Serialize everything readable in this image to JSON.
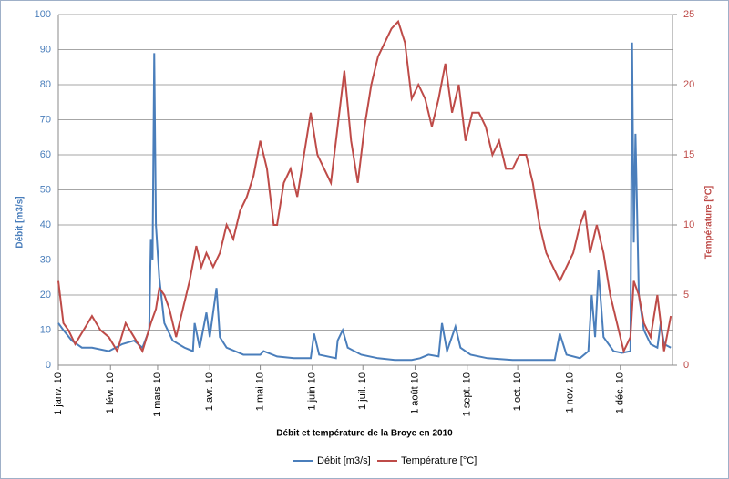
{
  "chart_data": {
    "type": "line",
    "title": "Débit et température de la Broye en 2010",
    "y_label": "Débit [m3/s]",
    "y2_label": "Température [°C]",
    "xlim": [
      0,
      365
    ],
    "xticks": [
      {
        "value": 0,
        "label": "1 janv. 10"
      },
      {
        "value": 31,
        "label": "1 févr. 10"
      },
      {
        "value": 59,
        "label": "1 mars 10"
      },
      {
        "value": 90,
        "label": "1 avr. 10"
      },
      {
        "value": 120,
        "label": "1 mai 10"
      },
      {
        "value": 151,
        "label": "1 juin 10"
      },
      {
        "value": 181,
        "label": "1 juil. 10"
      },
      {
        "value": 212,
        "label": "1 août 10"
      },
      {
        "value": 243,
        "label": "1 sept. 10"
      },
      {
        "value": 273,
        "label": "1 oct. 10"
      },
      {
        "value": 304,
        "label": "1 nov. 10"
      },
      {
        "value": 334,
        "label": "1 déc. 10"
      }
    ],
    "ylim": [
      0,
      100
    ],
    "yticks": [
      0,
      10,
      20,
      30,
      40,
      50,
      60,
      70,
      80,
      90,
      100
    ],
    "y2lim": [
      0,
      25
    ],
    "y2ticks": [
      0,
      5,
      10,
      15,
      20,
      25
    ],
    "grid": true,
    "legend": "bottom",
    "series": [
      {
        "name": "Débit [m3/s]",
        "color": "#4a7ebb",
        "x": [
          0,
          3,
          8,
          14,
          20,
          30,
          38,
          45,
          50,
          54,
          55,
          56,
          57,
          58,
          60,
          63,
          68,
          75,
          80,
          81,
          84,
          88,
          90,
          94,
          96,
          100,
          110,
          120,
          122,
          130,
          140,
          150,
          152,
          155,
          165,
          166,
          169,
          172,
          180,
          190,
          200,
          210,
          215,
          220,
          226,
          228,
          231,
          236,
          239,
          245,
          255,
          270,
          285,
          295,
          298,
          302,
          310,
          315,
          317,
          319,
          321,
          324,
          330,
          335,
          340,
          341,
          342,
          343,
          345,
          348,
          352,
          356,
          358,
          360,
          364
        ],
        "values": [
          12,
          10,
          7,
          5,
          5,
          4,
          6,
          7,
          5,
          10,
          36,
          30,
          89,
          40,
          25,
          12,
          7,
          5,
          4,
          12,
          5,
          15,
          8,
          22,
          8,
          5,
          3,
          3,
          4,
          2.5,
          2,
          2,
          9,
          3,
          2,
          7,
          10,
          5,
          3,
          2,
          1.5,
          1.5,
          2,
          3,
          2.5,
          12,
          4,
          11,
          5,
          3,
          2,
          1.5,
          1.5,
          1.5,
          9,
          3,
          2,
          4,
          20,
          8,
          27,
          8,
          4,
          3.5,
          4,
          92,
          35,
          66,
          20,
          10,
          6,
          5,
          12,
          6,
          5
        ]
      },
      {
        "name": "Température [°C]",
        "color": "#be4b48",
        "axis": "y2",
        "x": [
          0,
          3,
          6,
          10,
          15,
          20,
          25,
          30,
          35,
          40,
          45,
          50,
          55,
          58,
          60,
          63,
          66,
          70,
          74,
          78,
          82,
          85,
          88,
          92,
          96,
          100,
          104,
          108,
          112,
          116,
          120,
          124,
          128,
          130,
          134,
          138,
          142,
          146,
          150,
          154,
          158,
          162,
          166,
          170,
          174,
          178,
          182,
          186,
          190,
          194,
          198,
          202,
          206,
          210,
          214,
          218,
          222,
          226,
          230,
          234,
          238,
          242,
          246,
          250,
          254,
          258,
          262,
          266,
          270,
          274,
          278,
          282,
          286,
          290,
          294,
          298,
          302,
          306,
          310,
          313,
          316,
          320,
          324,
          328,
          332,
          336,
          340,
          342,
          345,
          348,
          352,
          356,
          360,
          364
        ],
        "values": [
          6,
          3,
          2.5,
          1.5,
          2.5,
          3.5,
          2.5,
          2,
          1,
          3,
          2,
          1,
          3,
          4,
          5.5,
          5,
          4,
          2,
          4,
          6,
          8.5,
          7,
          8,
          7,
          8,
          10,
          9,
          11,
          12,
          13.5,
          16,
          14,
          10,
          10,
          13,
          14,
          12,
          15,
          18,
          15,
          14,
          13,
          17,
          21,
          16,
          13,
          17,
          20,
          22,
          23,
          24,
          24.5,
          23,
          19,
          20,
          19,
          17,
          19,
          21.5,
          18,
          20,
          16,
          18,
          18,
          17,
          15,
          16,
          14,
          14,
          15,
          15,
          13,
          10,
          8,
          7,
          6,
          7,
          8,
          10,
          11,
          8,
          10,
          8,
          5,
          3,
          1,
          2,
          6,
          5,
          3,
          2,
          5,
          1,
          3.5
        ]
      }
    ]
  }
}
